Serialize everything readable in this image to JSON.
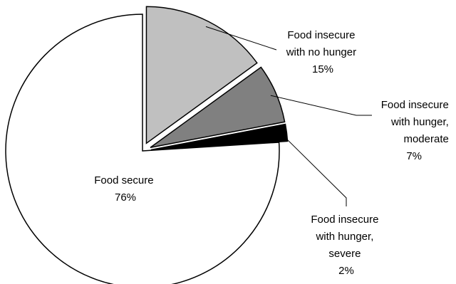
{
  "chart_data": {
    "type": "pie",
    "title": "",
    "slices": [
      {
        "line1": "Food secure",
        "line2": "",
        "line3": "",
        "pct": "76%",
        "value": 76,
        "color": "#ffffff"
      },
      {
        "line1": "Food insecure",
        "line2": "with no hunger",
        "line3": "",
        "pct": "15%",
        "value": 15,
        "color": "#c0c0c0"
      },
      {
        "line1": "Food insecure",
        "line2": "with hunger,",
        "line3": "moderate",
        "pct": "7%",
        "value": 7,
        "color": "#808080"
      },
      {
        "line1": "Food insecure",
        "line2": "with hunger,",
        "line3": "severe",
        "pct": "2%",
        "value": 2,
        "color": "#000000"
      }
    ],
    "exploded": [
      1,
      2,
      3
    ],
    "outline_color": "#000000"
  }
}
